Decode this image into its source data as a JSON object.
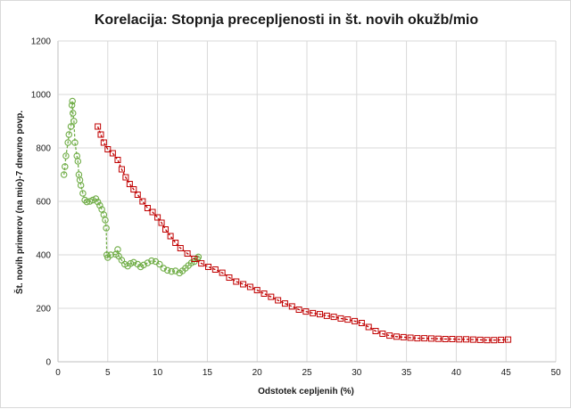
{
  "chart_data": {
    "type": "scatter",
    "title": "Korelacija: Stopnja precepljenosti in št. novih okužb/mio",
    "xlabel": "Odstotek cepljenih (%)",
    "ylabel": "Št. novih primerov (na mio)-7 dnevno povp.",
    "xlim": [
      0,
      50
    ],
    "ylim": [
      0,
      1200
    ],
    "xticks": [
      "0",
      "5",
      "10",
      "15",
      "20",
      "25",
      "30",
      "35",
      "40",
      "45",
      "50"
    ],
    "yticks": [
      "0",
      "200",
      "400",
      "600",
      "800",
      "1000",
      "1200"
    ],
    "grid": true,
    "series": [
      {
        "name": "green-circles",
        "color": "#70ad47",
        "marker": "circle",
        "points": [
          [
            0.6,
            700
          ],
          [
            0.7,
            730
          ],
          [
            0.8,
            770
          ],
          [
            1.0,
            820
          ],
          [
            1.1,
            850
          ],
          [
            1.3,
            880
          ],
          [
            1.4,
            960
          ],
          [
            1.45,
            975
          ],
          [
            1.5,
            930
          ],
          [
            1.6,
            900
          ],
          [
            1.7,
            820
          ],
          [
            1.9,
            770
          ],
          [
            2.0,
            750
          ],
          [
            2.1,
            700
          ],
          [
            2.2,
            680
          ],
          [
            2.3,
            660
          ],
          [
            2.5,
            630
          ],
          [
            2.7,
            605
          ],
          [
            2.9,
            598
          ],
          [
            3.2,
            600
          ],
          [
            3.5,
            605
          ],
          [
            3.8,
            610
          ],
          [
            4.0,
            598
          ],
          [
            4.2,
            585
          ],
          [
            4.4,
            570
          ],
          [
            4.6,
            550
          ],
          [
            4.75,
            530
          ],
          [
            4.85,
            500
          ],
          [
            4.9,
            400
          ],
          [
            5.0,
            390
          ],
          [
            5.3,
            400
          ],
          [
            5.8,
            402
          ],
          [
            6.0,
            420
          ],
          [
            6.1,
            395
          ],
          [
            6.4,
            380
          ],
          [
            6.7,
            365
          ],
          [
            7.0,
            358
          ],
          [
            7.3,
            368
          ],
          [
            7.6,
            372
          ],
          [
            8.0,
            365
          ],
          [
            8.3,
            355
          ],
          [
            8.6,
            362
          ],
          [
            9.0,
            370
          ],
          [
            9.4,
            378
          ],
          [
            9.8,
            375
          ],
          [
            10.2,
            365
          ],
          [
            10.6,
            350
          ],
          [
            11.0,
            342
          ],
          [
            11.4,
            338
          ],
          [
            11.8,
            340
          ],
          [
            12.2,
            332
          ],
          [
            12.5,
            340
          ],
          [
            12.8,
            350
          ],
          [
            13.1,
            360
          ],
          [
            13.4,
            370
          ],
          [
            13.7,
            375
          ],
          [
            14.0,
            385
          ],
          [
            14.1,
            392
          ]
        ]
      },
      {
        "name": "red-squares",
        "color": "#c00000",
        "marker": "square",
        "points": [
          [
            4.0,
            880
          ],
          [
            4.3,
            850
          ],
          [
            4.6,
            820
          ],
          [
            5.0,
            795
          ],
          [
            5.5,
            780
          ],
          [
            6.0,
            755
          ],
          [
            6.4,
            720
          ],
          [
            6.8,
            690
          ],
          [
            7.2,
            665
          ],
          [
            7.6,
            645
          ],
          [
            8.0,
            625
          ],
          [
            8.5,
            600
          ],
          [
            9.0,
            575
          ],
          [
            9.5,
            560
          ],
          [
            10.0,
            540
          ],
          [
            10.4,
            520
          ],
          [
            10.8,
            495
          ],
          [
            11.3,
            470
          ],
          [
            11.8,
            445
          ],
          [
            12.3,
            425
          ],
          [
            13.0,
            405
          ],
          [
            13.7,
            385
          ],
          [
            14.4,
            368
          ],
          [
            15.1,
            355
          ],
          [
            15.8,
            345
          ],
          [
            16.5,
            333
          ],
          [
            17.2,
            315
          ],
          [
            17.9,
            300
          ],
          [
            18.6,
            290
          ],
          [
            19.3,
            280
          ],
          [
            20.0,
            268
          ],
          [
            20.7,
            255
          ],
          [
            21.4,
            243
          ],
          [
            22.1,
            230
          ],
          [
            22.8,
            218
          ],
          [
            23.5,
            207
          ],
          [
            24.2,
            195
          ],
          [
            24.9,
            188
          ],
          [
            25.6,
            182
          ],
          [
            26.3,
            178
          ],
          [
            27.0,
            172
          ],
          [
            27.7,
            168
          ],
          [
            28.4,
            162
          ],
          [
            29.1,
            158
          ],
          [
            29.8,
            152
          ],
          [
            30.5,
            145
          ],
          [
            31.2,
            130
          ],
          [
            31.9,
            115
          ],
          [
            32.6,
            105
          ],
          [
            33.3,
            98
          ],
          [
            34.0,
            94
          ],
          [
            34.7,
            92
          ],
          [
            35.4,
            90
          ],
          [
            36.1,
            88
          ],
          [
            36.8,
            88
          ],
          [
            37.5,
            87
          ],
          [
            38.2,
            86
          ],
          [
            38.9,
            85
          ],
          [
            39.6,
            85
          ],
          [
            40.3,
            84
          ],
          [
            41.0,
            84
          ],
          [
            41.7,
            83
          ],
          [
            42.4,
            82
          ],
          [
            43.1,
            81
          ],
          [
            43.8,
            81
          ],
          [
            44.5,
            82
          ],
          [
            45.2,
            83
          ]
        ]
      }
    ]
  }
}
